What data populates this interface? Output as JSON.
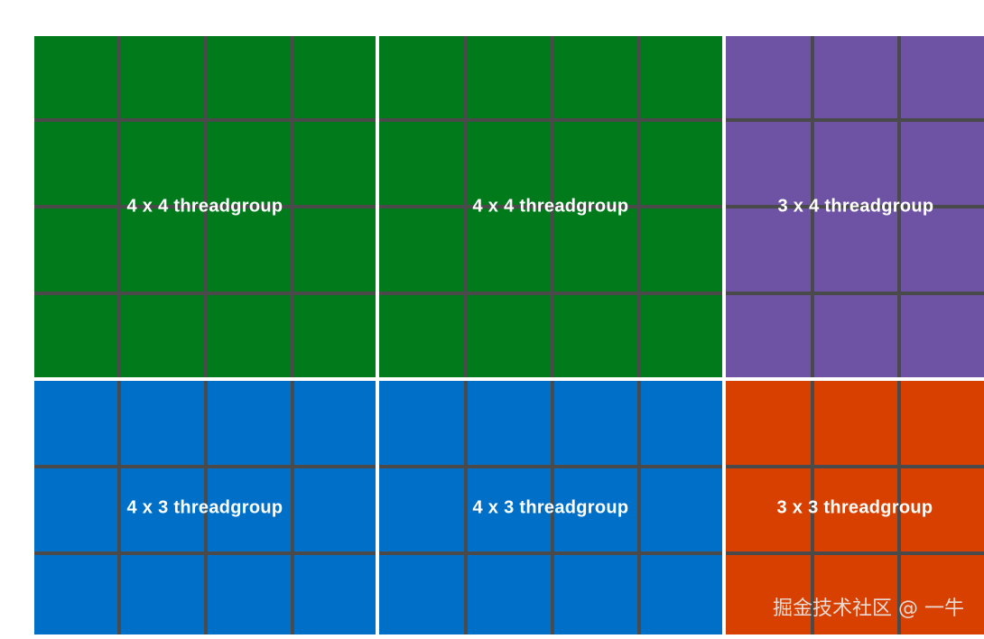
{
  "colors": {
    "green": "#017a1b",
    "purple": "#6e52a3",
    "blue": "#006fc8",
    "orange": "#d84000",
    "grid_line": "#4a4a4a"
  },
  "blocks": [
    {
      "label": "4 x 4 threadgroup",
      "color": "#017a1b"
    },
    {
      "label": "4 x 4 threadgroup",
      "color": "#017a1b"
    },
    {
      "label": "3 x 4 threadgroup",
      "color": "#6e52a3"
    },
    {
      "label": "4 x 3 threadgroup",
      "color": "#006fc8"
    },
    {
      "label": "4 x 3 threadgroup",
      "color": "#006fc8"
    },
    {
      "label": "3 x 3 threadgroup",
      "color": "#d84000"
    }
  ],
  "watermark": "掘金技术社区 @ 一牛"
}
